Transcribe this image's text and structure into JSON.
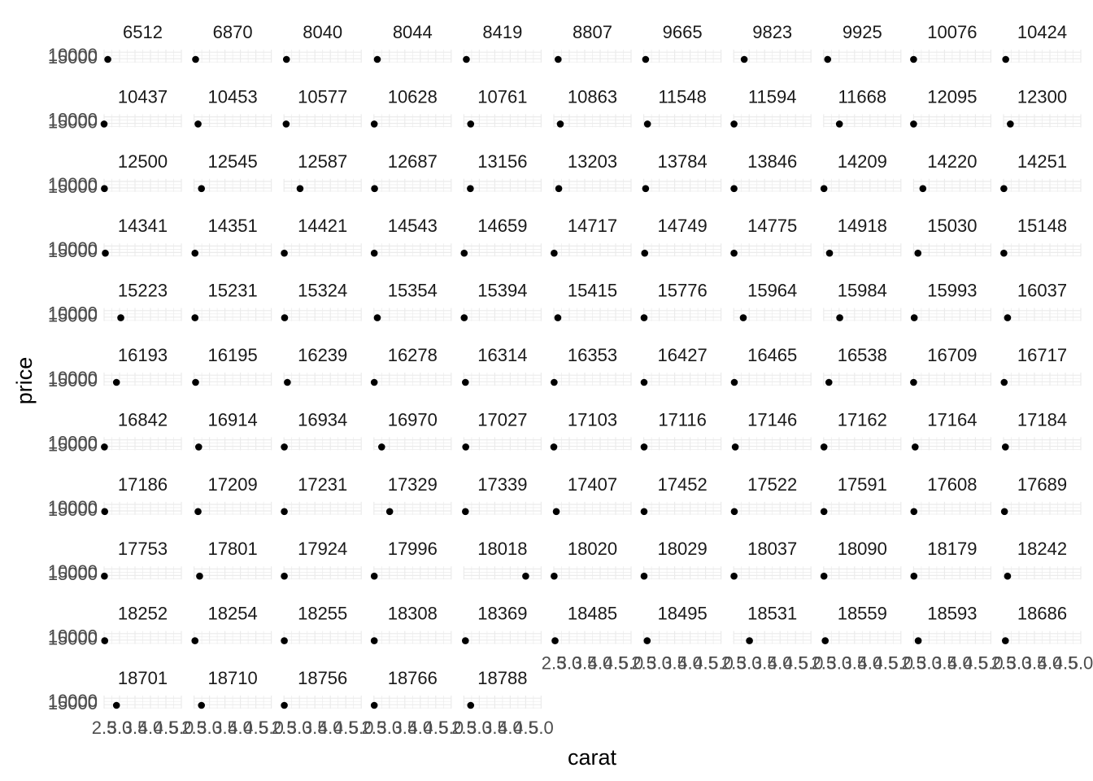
{
  "chart_data": {
    "type": "scatter",
    "facet_by": "price",
    "ncol": 11,
    "xlabel": "carat",
    "ylabel": "price",
    "xlim": [
      2.5,
      5.0
    ],
    "x_ticks": [
      2.5,
      3.0,
      3.5,
      4.0,
      4.5,
      5.0
    ],
    "x_tick_labels": [
      "2.5",
      "3.0",
      "3.5",
      "4.0",
      "4.5",
      "5.0"
    ],
    "y_ticks": [
      10000,
      15000
    ],
    "y_tick_labels": [
      "10000",
      "15000"
    ],
    "grid": true,
    "point_color": "#000000",
    "grid_color": "#ebebeb",
    "panels": [
      {
        "label": "6512",
        "carat": 2.62
      },
      {
        "label": "6870",
        "carat": 2.55
      },
      {
        "label": "8040",
        "carat": 2.58
      },
      {
        "label": "8044",
        "carat": 2.61
      },
      {
        "label": "8419",
        "carat": 2.58
      },
      {
        "label": "8807",
        "carat": 2.64
      },
      {
        "label": "9665",
        "carat": 2.56
      },
      {
        "label": "9823",
        "carat": 2.84
      },
      {
        "label": "9925",
        "carat": 2.63
      },
      {
        "label": "10076",
        "carat": 2.5
      },
      {
        "label": "10424",
        "carat": 2.57
      },
      {
        "label": "10437",
        "carat": 2.5
      },
      {
        "label": "10453",
        "carat": 2.63
      },
      {
        "label": "10577",
        "carat": 2.57
      },
      {
        "label": "10628",
        "carat": 2.51
      },
      {
        "label": "10761",
        "carat": 2.72
      },
      {
        "label": "10863",
        "carat": 2.71
      },
      {
        "label": "11548",
        "carat": 2.62
      },
      {
        "label": "11594",
        "carat": 2.51
      },
      {
        "label": "11668",
        "carat": 3.01
      },
      {
        "label": "12095",
        "carat": 2.5
      },
      {
        "label": "12300",
        "carat": 2.72
      },
      {
        "label": "12500",
        "carat": 2.51
      },
      {
        "label": "12545",
        "carat": 2.74
      },
      {
        "label": "12587",
        "carat": 3.02
      },
      {
        "label": "12687",
        "carat": 2.52
      },
      {
        "label": "13156",
        "carat": 2.71
      },
      {
        "label": "13203",
        "carat": 2.66
      },
      {
        "label": "13784",
        "carat": 2.56
      },
      {
        "label": "13846",
        "carat": 2.51
      },
      {
        "label": "14209",
        "carat": 2.51
      },
      {
        "label": "14220",
        "carat": 2.8
      },
      {
        "label": "14251",
        "carat": 2.51
      },
      {
        "label": "14341",
        "carat": 2.54
      },
      {
        "label": "14351",
        "carat": 2.53
      },
      {
        "label": "14421",
        "carat": 2.51
      },
      {
        "label": "14543",
        "carat": 2.51
      },
      {
        "label": "14659",
        "carat": 2.51
      },
      {
        "label": "14717",
        "carat": 2.51
      },
      {
        "label": "14749",
        "carat": 2.53
      },
      {
        "label": "14775",
        "carat": 2.51
      },
      {
        "label": "14918",
        "carat": 2.69
      },
      {
        "label": "15030",
        "carat": 2.64
      },
      {
        "label": "15148",
        "carat": 2.51
      },
      {
        "label": "15223",
        "carat": 3.04
      },
      {
        "label": "15231",
        "carat": 2.53
      },
      {
        "label": "15324",
        "carat": 2.52
      },
      {
        "label": "15354",
        "carat": 2.61
      },
      {
        "label": "15394",
        "carat": 2.51
      },
      {
        "label": "15415",
        "carat": 2.63
      },
      {
        "label": "15776",
        "carat": 2.51
      },
      {
        "label": "15964",
        "carat": 2.81
      },
      {
        "label": "15984",
        "carat": 3.02
      },
      {
        "label": "15993",
        "carat": 2.52
      },
      {
        "label": "16037",
        "carat": 2.63
      },
      {
        "label": "16193",
        "carat": 2.9
      },
      {
        "label": "16195",
        "carat": 2.55
      },
      {
        "label": "16239",
        "carat": 2.61
      },
      {
        "label": "16278",
        "carat": 2.51
      },
      {
        "label": "16314",
        "carat": 2.55
      },
      {
        "label": "16353",
        "carat": 2.51
      },
      {
        "label": "16427",
        "carat": 2.51
      },
      {
        "label": "16465",
        "carat": 2.52
      },
      {
        "label": "16538",
        "carat": 2.67
      },
      {
        "label": "16709",
        "carat": 2.5
      },
      {
        "label": "16717",
        "carat": 2.52
      },
      {
        "label": "16842",
        "carat": 2.51
      },
      {
        "label": "16914",
        "carat": 2.65
      },
      {
        "label": "16934",
        "carat": 2.51
      },
      {
        "label": "16970",
        "carat": 2.75
      },
      {
        "label": "17027",
        "carat": 2.56
      },
      {
        "label": "17103",
        "carat": 2.5
      },
      {
        "label": "17116",
        "carat": 2.51
      },
      {
        "label": "17146",
        "carat": 2.55
      },
      {
        "label": "17162",
        "carat": 2.51
      },
      {
        "label": "17164",
        "carat": 2.55
      },
      {
        "label": "17184",
        "carat": 2.56
      },
      {
        "label": "17186",
        "carat": 2.52
      },
      {
        "label": "17209",
        "carat": 2.63
      },
      {
        "label": "17231",
        "carat": 2.51
      },
      {
        "label": "17329",
        "carat": 3.01
      },
      {
        "label": "17339",
        "carat": 2.55
      },
      {
        "label": "17407",
        "carat": 2.58
      },
      {
        "label": "17452",
        "carat": 2.51
      },
      {
        "label": "17522",
        "carat": 2.52
      },
      {
        "label": "17591",
        "carat": 2.51
      },
      {
        "label": "17608",
        "carat": 2.51
      },
      {
        "label": "17689",
        "carat": 2.53
      },
      {
        "label": "17753",
        "carat": 2.51
      },
      {
        "label": "17801",
        "carat": 2.68
      },
      {
        "label": "17924",
        "carat": 2.51
      },
      {
        "label": "17996",
        "carat": 2.51
      },
      {
        "label": "18018",
        "carat": 4.5
      },
      {
        "label": "18020",
        "carat": 2.51
      },
      {
        "label": "18029",
        "carat": 2.51
      },
      {
        "label": "18037",
        "carat": 2.51
      },
      {
        "label": "18090",
        "carat": 2.51
      },
      {
        "label": "18179",
        "carat": 2.51
      },
      {
        "label": "18242",
        "carat": 2.63
      },
      {
        "label": "18252",
        "carat": 2.52
      },
      {
        "label": "18254",
        "carat": 2.53
      },
      {
        "label": "18255",
        "carat": 2.51
      },
      {
        "label": "18308",
        "carat": 2.51
      },
      {
        "label": "18369",
        "carat": 2.55
      },
      {
        "label": "18485",
        "carat": 2.54
      },
      {
        "label": "18495",
        "carat": 2.61
      },
      {
        "label": "18531",
        "carat": 3.01
      },
      {
        "label": "18559",
        "carat": 2.55
      },
      {
        "label": "18593",
        "carat": 2.65
      },
      {
        "label": "18686",
        "carat": 2.56
      },
      {
        "label": "18701",
        "carat": 2.9
      },
      {
        "label": "18710",
        "carat": 2.74
      },
      {
        "label": "18756",
        "carat": 2.51
      },
      {
        "label": "18766",
        "carat": 2.51
      },
      {
        "label": "18788",
        "carat": 2.72
      }
    ]
  }
}
